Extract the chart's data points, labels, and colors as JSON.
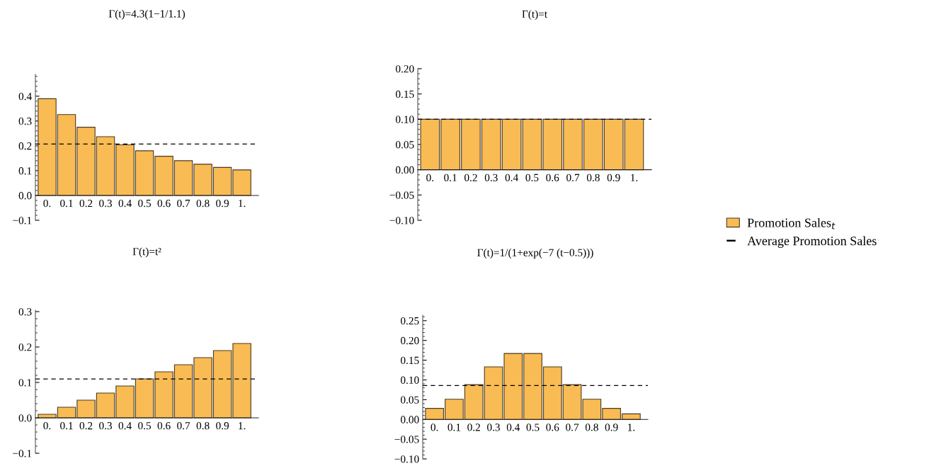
{
  "chart_data": [
    {
      "type": "bar",
      "title": "Γ(t)=4.3(1−1/1.1)",
      "categories": [
        "0.",
        "0.1",
        "0.2",
        "0.3",
        "0.4",
        "0.5",
        "0.6",
        "0.7",
        "0.8",
        "0.9",
        "1."
      ],
      "series": [
        {
          "name": "Promotion Sales$_{t}$",
          "color": "#f9bb53",
          "values": [
            0.39,
            0.326,
            0.275,
            0.237,
            0.204,
            0.18,
            0.158,
            0.14,
            0.126,
            0.113,
            0.103
          ]
        }
      ],
      "ref_lines": [
        {
          "axis": "y",
          "value": 0.207,
          "label": "Average Promotion Sales",
          "line_style": "dashed",
          "color": "#000000"
        }
      ],
      "legend": "right",
      "ylim": [
        -0.1,
        0.488
      ],
      "yticks": [
        {
          "value": -0.1,
          "label": "−0.1"
        },
        {
          "value": 0.0,
          "label": "0.0"
        },
        0.1,
        0.2,
        0.3,
        0.4
      ]
    },
    {
      "type": "bar",
      "title": "Γ(t)=t",
      "categories": [
        "0.",
        "0.1",
        "0.2",
        "0.3",
        "0.4",
        "0.5",
        "0.6",
        "0.7",
        "0.8",
        "0.9",
        "1."
      ],
      "series": [
        {
          "color": "#f9bb53",
          "values": [
            0.1,
            0.1,
            0.1,
            0.1,
            0.1,
            0.1,
            0.1,
            0.1,
            0.1,
            0.1,
            0.1
          ]
        }
      ],
      "ref_lines": [
        {
          "axis": "y",
          "value": 0.1,
          "line_style": "dashed",
          "color": "#000000"
        }
      ],
      "ylim": [
        -0.1,
        0.2
      ],
      "yticks": [
        {
          "value": -0.1,
          "label": "−0.10"
        },
        {
          "value": -0.05,
          "label": "−0.05"
        },
        {
          "value": 0.0,
          "label": "0.00"
        },
        {
          "value": 0.05,
          "label": "0.05"
        },
        {
          "value": 0.1,
          "label": "0.10"
        },
        {
          "value": 0.15,
          "label": "0.15"
        },
        {
          "value": 0.2,
          "label": "0.20"
        }
      ]
    },
    {
      "type": "bar",
      "title": "Γ(t)=t²",
      "categories": [
        "0.",
        "0.1",
        "0.2",
        "0.3",
        "0.4",
        "0.5",
        "0.6",
        "0.7",
        "0.8",
        "0.9",
        "1."
      ],
      "series": [
        {
          "color": "#f9bb53",
          "values": [
            0.01,
            0.03,
            0.05,
            0.07,
            0.09,
            0.11,
            0.13,
            0.15,
            0.17,
            0.19,
            0.21
          ]
        }
      ],
      "ref_lines": [
        {
          "axis": "y",
          "value": 0.11,
          "line_style": "dashed",
          "color": "#000000"
        }
      ],
      "ylim": [
        -0.1,
        0.304
      ],
      "yticks": [
        {
          "value": -0.1,
          "label": "−0.1"
        },
        {
          "value": 0.0,
          "label": "0.0"
        },
        0.1,
        0.2,
        0.3
      ]
    },
    {
      "type": "bar",
      "title": "Γ(t)=1/(1+exp(−7 (t−0.5)))",
      "categories": [
        "0.",
        "0.1",
        "0.2",
        "0.3",
        "0.4",
        "0.5",
        "0.6",
        "0.7",
        "0.8",
        "0.9",
        "1."
      ],
      "series": [
        {
          "color": "#f9bb53",
          "values": [
            0.028,
            0.051,
            0.088,
            0.133,
            0.167,
            0.167,
            0.133,
            0.088,
            0.051,
            0.028,
            0.014
          ]
        }
      ],
      "ref_lines": [
        {
          "axis": "y",
          "value": 0.086,
          "line_style": "dashed",
          "color": "#000000"
        }
      ],
      "ylim": [
        -0.1,
        0.264
      ],
      "yticks": [
        {
          "value": -0.1,
          "label": "−0.10"
        },
        {
          "value": -0.05,
          "label": "−0.05"
        },
        {
          "value": 0.0,
          "label": "0.00"
        },
        {
          "value": 0.05,
          "label": "0.05"
        },
        {
          "value": 0.1,
          "label": "0.10"
        },
        {
          "value": 0.15,
          "label": "0.15"
        },
        {
          "value": 0.2,
          "label": "0.20"
        },
        {
          "value": 0.25,
          "label": "0.25"
        }
      ]
    }
  ]
}
